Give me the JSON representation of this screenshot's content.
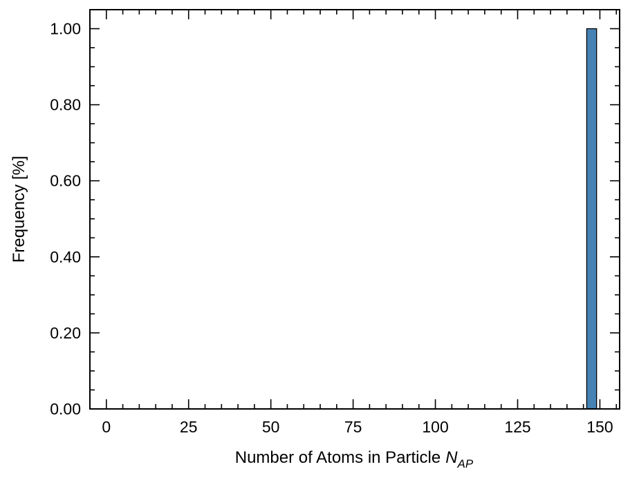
{
  "chart_data": {
    "type": "bar",
    "x_values": [
      147.5
    ],
    "bar_width": 3,
    "values": [
      1.0
    ],
    "bar_color": "#4682b4",
    "edge_color": "#000000",
    "xlabel": "Number of Atoms in Particle",
    "xlabel_symbol": "N",
    "xlabel_subscript": "AP",
    "ylabel": "Frequency [%]",
    "xlim": [
      -5,
      156
    ],
    "ylim": [
      0,
      1.05
    ],
    "x_ticks": [
      0,
      25,
      50,
      75,
      100,
      125,
      150
    ],
    "x_tick_labels": [
      "0",
      "25",
      "50",
      "75",
      "100",
      "125",
      "150"
    ],
    "y_ticks": [
      0,
      0.2,
      0.4,
      0.6,
      0.8,
      1.0
    ],
    "y_tick_labels": [
      "0.00",
      "0.20",
      "0.40",
      "0.60",
      "0.80",
      "1.00"
    ],
    "x_minor_step": 5,
    "y_minor_step": 0.05,
    "grid": false,
    "legend": "none"
  }
}
